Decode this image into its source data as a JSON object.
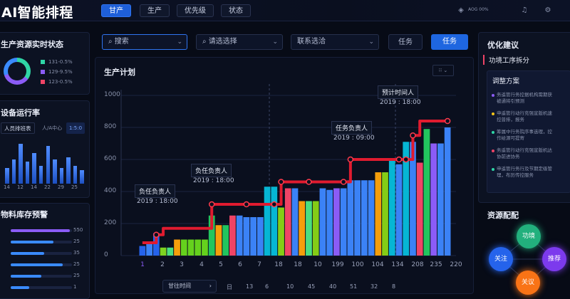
{
  "header": {
    "logo": "AI智能排程",
    "tabs": [
      "甘产",
      "生产",
      "优先级",
      "状态"
    ],
    "active_tab": 0,
    "info": "AOG 00%"
  },
  "left": {
    "status": {
      "title": "生产资源实时状态",
      "legend": [
        {
          "label": "131-0.5%",
          "color": "#2fd6a6"
        },
        {
          "label": "129-9.5%",
          "color": "#8b5cf6"
        },
        {
          "label": "123-0.5%",
          "color": "#ef4466"
        }
      ]
    },
    "equipment": {
      "title": "设备运行率",
      "filters": [
        "人员排班表",
        "人/A中心",
        "1:5:0"
      ],
      "xlabels": [
        "14",
        "12",
        "14",
        "22",
        "29",
        "25"
      ],
      "bars": [
        0.35,
        0.55,
        0.9,
        0.5,
        0.7,
        0.4,
        0.85,
        0.55,
        0.35,
        0.6,
        0.4,
        0.3
      ]
    },
    "inventory": {
      "title": "物料库存预警",
      "rows": [
        {
          "value": "550",
          "fill": 0.96,
          "color": "#8b5cf6"
        },
        {
          "value": "25",
          "fill": 0.7,
          "color": "#3a8bff"
        },
        {
          "value": "35",
          "fill": 0.55,
          "color": "#3a8bff"
        },
        {
          "value": "25",
          "fill": 0.85,
          "color": "#3a8bff"
        },
        {
          "value": "25",
          "fill": 0.5,
          "color": "#3a8bff"
        },
        {
          "value": "1",
          "fill": 0.3,
          "color": "#3a8bff"
        }
      ]
    }
  },
  "controls": {
    "search_label": "搜索",
    "select_placeholder": "请选选择",
    "link_label": "联系选洽",
    "task_btn": "任务",
    "task_btn_primary": "任务"
  },
  "chart_data": {
    "type": "bar",
    "title": "生产计划",
    "ylim": [
      0,
      1000
    ],
    "yticks": [
      0,
      200,
      400,
      600,
      800,
      1000
    ],
    "xticks": [
      "1",
      "2",
      "3",
      "4",
      "5",
      "6",
      "7",
      "18",
      "18",
      "10",
      "199",
      "100",
      "104",
      "134",
      "208",
      "235",
      "220"
    ],
    "bars": [
      {
        "v": 60,
        "c": "#2563eb"
      },
      {
        "v": 80,
        "c": "#3b82f6"
      },
      {
        "v": 140,
        "c": "#2563eb"
      },
      {
        "v": 50,
        "c": "#7ed321"
      },
      {
        "v": 50,
        "c": "#4ade80"
      },
      {
        "v": 100,
        "c": "#f59e0b"
      },
      {
        "v": 100,
        "c": "#65d11d"
      },
      {
        "v": 100,
        "c": "#65d11d"
      },
      {
        "v": 100,
        "c": "#65d11d"
      },
      {
        "v": 100,
        "c": "#65d11d"
      },
      {
        "v": 250,
        "c": "#22c55e"
      },
      {
        "v": 190,
        "c": "#f59e0b"
      },
      {
        "v": 190,
        "c": "#22c55e"
      },
      {
        "v": 250,
        "c": "#ef4466"
      },
      {
        "v": 250,
        "c": "#3b82f6"
      },
      {
        "v": 240,
        "c": "#3b82f6"
      },
      {
        "v": 240,
        "c": "#3b82f6"
      },
      {
        "v": 240,
        "c": "#3b82f6"
      },
      {
        "v": 430,
        "c": "#06b6d4"
      },
      {
        "v": 430,
        "c": "#06b6d4"
      },
      {
        "v": 300,
        "c": "#84cc16"
      },
      {
        "v": 420,
        "c": "#ef4466"
      },
      {
        "v": 420,
        "c": "#3b82f6"
      },
      {
        "v": 340,
        "c": "#f59e0b"
      },
      {
        "v": 340,
        "c": "#4ade80"
      },
      {
        "v": 340,
        "c": "#84cc16"
      },
      {
        "v": 420,
        "c": "#3b82f6"
      },
      {
        "v": 410,
        "c": "#3b82f6"
      },
      {
        "v": 420,
        "c": "#8b5cf6"
      },
      {
        "v": 420,
        "c": "#3b82f6"
      },
      {
        "v": 470,
        "c": "#3b82f6"
      },
      {
        "v": 470,
        "c": "#3b82f6"
      },
      {
        "v": 470,
        "c": "#3b82f6"
      },
      {
        "v": 470,
        "c": "#3b82f6"
      },
      {
        "v": 520,
        "c": "#f59e0b"
      },
      {
        "v": 520,
        "c": "#84cc16"
      },
      {
        "v": 600,
        "c": "#06b6d4"
      },
      {
        "v": 570,
        "c": "#3b82f6"
      },
      {
        "v": 710,
        "c": "#06b6d4"
      },
      {
        "v": 710,
        "c": "#3b82f6"
      },
      {
        "v": 580,
        "c": "#ef4466"
      },
      {
        "v": 790,
        "c": "#22c55e"
      },
      {
        "v": 700,
        "c": "#8b5cf6"
      },
      {
        "v": 700,
        "c": "#3b82f6"
      },
      {
        "v": 800,
        "c": "#3b82f6"
      }
    ],
    "line": [
      [
        0,
        80
      ],
      [
        1,
        80
      ],
      [
        2,
        130
      ],
      [
        3,
        170
      ],
      [
        4,
        170
      ],
      [
        5,
        170
      ],
      [
        6,
        170
      ],
      [
        7,
        170
      ],
      [
        8,
        170
      ],
      [
        9,
        170
      ],
      [
        10,
        320
      ],
      [
        11,
        320
      ],
      [
        12,
        320
      ],
      [
        13,
        320
      ],
      [
        14,
        320
      ],
      [
        15,
        320
      ],
      [
        16,
        320
      ],
      [
        17,
        320
      ],
      [
        18,
        320
      ],
      [
        19,
        320
      ],
      [
        20,
        460
      ],
      [
        21,
        460
      ],
      [
        22,
        460
      ],
      [
        23,
        460
      ],
      [
        24,
        460
      ],
      [
        25,
        460
      ],
      [
        26,
        460
      ],
      [
        27,
        460
      ],
      [
        28,
        460
      ],
      [
        29,
        460
      ],
      [
        30,
        600
      ],
      [
        31,
        600
      ],
      [
        32,
        600
      ],
      [
        33,
        600
      ],
      [
        34,
        600
      ],
      [
        35,
        600
      ],
      [
        36,
        600
      ],
      [
        37,
        600
      ],
      [
        38,
        600
      ],
      [
        39,
        750
      ],
      [
        40,
        840
      ],
      [
        41,
        840
      ],
      [
        42,
        840
      ],
      [
        43,
        840
      ],
      [
        44,
        840
      ]
    ],
    "markers": [
      2,
      10,
      15,
      19,
      20,
      24,
      29,
      30,
      37,
      38,
      39,
      44
    ],
    "annotations": [
      {
        "label": "负任负责人",
        "time": "2019 : 18:00"
      },
      {
        "label": "负任负责人",
        "time": "2019 : 18:00"
      },
      {
        "label": "任务负责人",
        "time": "2019 : 09:00"
      },
      {
        "label": "预计时间人",
        "time": "2019 : 18:00"
      }
    ]
  },
  "pager": {
    "label": "甘往时间",
    "pages": [
      "日",
      "13",
      "6",
      "10",
      "45",
      "40",
      "51",
      "32",
      "8"
    ]
  },
  "right": {
    "title": "优化建议",
    "subtitle": "功境工序拆分",
    "box_title": "调整方案",
    "items": [
      {
        "text": "务遥管行务控据机构需期获被通将引预测",
        "color": "#8b5cf6"
      },
      {
        "text": "申遥管行动行充强宣版机速控普排，报务",
        "color": "#f5c518"
      },
      {
        "text": "筹属中行务院序事选理，控作给源可提寄",
        "color": "#2fd6a6"
      },
      {
        "text": "务遥管行动行充强宣版机达协前进协务",
        "color": "#ef4466"
      },
      {
        "text": "申遥管行务行及节期定级管理，布历传控服务",
        "color": "#2fd6a6"
      }
    ],
    "resource_title": "资源配配",
    "nodes": [
      {
        "label": "功境",
        "color": "#22b07d"
      },
      {
        "label": "关注",
        "color": "#2563eb"
      },
      {
        "label": "推荐",
        "color": "#7c3aed"
      },
      {
        "label": "关议",
        "color": "#f97316"
      }
    ]
  }
}
